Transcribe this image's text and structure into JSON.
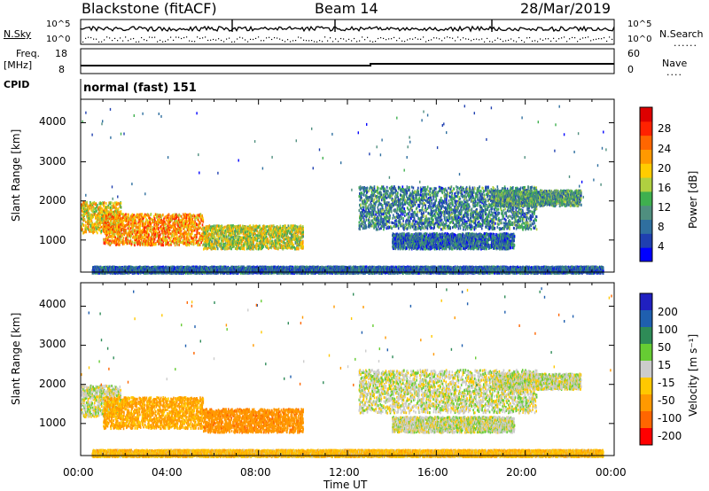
{
  "header": {
    "station": "Blackstone (fitACF)",
    "beam": "Beam 14",
    "date": "28/Mar/2019"
  },
  "noise_panel": {
    "left_label": "N.Sky",
    "right_label": "N.Search",
    "left_ticks": [
      "10^5",
      "10^0"
    ],
    "right_ticks": [
      "10^5",
      "10^0"
    ]
  },
  "freq_panel": {
    "left_label_1": "Freq.",
    "left_label_2": "[MHz]",
    "right_label": "Nave",
    "left_ticks": [
      "18",
      "8"
    ],
    "right_ticks": [
      "60",
      "0"
    ]
  },
  "cpid_panel": {
    "label": "CPID",
    "text": "normal (fast) 151"
  },
  "colors": {
    "power_scale": [
      "#0000ff",
      "#1f3fb0",
      "#2f6f9f",
      "#4f8f7f",
      "#3fb04f",
      "#b0d040",
      "#ffcc00",
      "#ff9900",
      "#ff6600",
      "#ff2200",
      "#dd0000"
    ],
    "velocity_scale": [
      "#ff0000",
      "#ff6600",
      "#ff9900",
      "#ffc800",
      "#cccccc",
      "#66cc33",
      "#2e8b57",
      "#1f5faf",
      "#2020c0"
    ]
  },
  "chart_data": [
    {
      "type": "heatmap",
      "title": "",
      "xlabel": "Time UT",
      "ylabel": "Slant Range [km]",
      "x_ticks": [
        "00:00",
        "04:00",
        "08:00",
        "12:00",
        "16:00",
        "20:00",
        "00:00"
      ],
      "y_ticks": [
        "1000",
        "2000",
        "3000",
        "4000"
      ],
      "ylim": [
        180,
        4600
      ],
      "xlim_hours": [
        0,
        24
      ],
      "colorbar_label": "Power [dB]",
      "colorbar_ticks": [
        "4",
        "8",
        "12",
        "16",
        "20",
        "24",
        "28"
      ],
      "colorbar_range": [
        0,
        31
      ],
      "echo_regions": [
        {
          "t_start": 0.0,
          "t_end": 1.8,
          "r_min": 1200,
          "r_max": 2000,
          "value": 18
        },
        {
          "t_start": 1.0,
          "t_end": 5.5,
          "r_min": 900,
          "r_max": 1700,
          "value": 22
        },
        {
          "t_start": 5.5,
          "t_end": 10.0,
          "r_min": 800,
          "r_max": 1400,
          "value": 16
        },
        {
          "t_start": 12.5,
          "t_end": 20.5,
          "r_min": 1300,
          "r_max": 2400,
          "value": 8
        },
        {
          "t_start": 14.0,
          "t_end": 19.5,
          "r_min": 800,
          "r_max": 1200,
          "value": 6
        },
        {
          "t_start": 18.5,
          "t_end": 22.5,
          "r_min": 1900,
          "r_max": 2300,
          "value": 10
        },
        {
          "t_start": 0.5,
          "t_end": 23.5,
          "r_min": 180,
          "r_max": 350,
          "value": 6
        }
      ]
    },
    {
      "type": "heatmap",
      "title": "",
      "xlabel": "Time UT",
      "ylabel": "Slant Range [km]",
      "x_ticks": [
        "00:00",
        "04:00",
        "08:00",
        "12:00",
        "16:00",
        "20:00",
        "00:00"
      ],
      "y_ticks": [
        "1000",
        "2000",
        "3000",
        "4000"
      ],
      "ylim": [
        180,
        4600
      ],
      "xlim_hours": [
        0,
        24
      ],
      "colorbar_label": "Velocity [m s⁻¹]",
      "colorbar_ticks": [
        "200",
        "100",
        "50",
        "15",
        "-15",
        "-50",
        "-100",
        "-200"
      ],
      "echo_regions": [
        {
          "t_start": 0.0,
          "t_end": 1.8,
          "r_min": 1200,
          "r_max": 2000,
          "value": 0
        },
        {
          "t_start": 1.0,
          "t_end": 5.5,
          "r_min": 900,
          "r_max": 1700,
          "value": -60
        },
        {
          "t_start": 5.5,
          "t_end": 10.0,
          "r_min": 800,
          "r_max": 1400,
          "value": -80
        },
        {
          "t_start": 12.5,
          "t_end": 20.5,
          "r_min": 1300,
          "r_max": 2400,
          "value": 0
        },
        {
          "t_start": 14.0,
          "t_end": 19.5,
          "r_min": 800,
          "r_max": 1200,
          "value": 0
        },
        {
          "t_start": 18.5,
          "t_end": 22.5,
          "r_min": 1900,
          "r_max": 2300,
          "value": 0
        },
        {
          "t_start": 0.5,
          "t_end": 23.5,
          "r_min": 180,
          "r_max": 350,
          "value": -40
        }
      ]
    }
  ]
}
